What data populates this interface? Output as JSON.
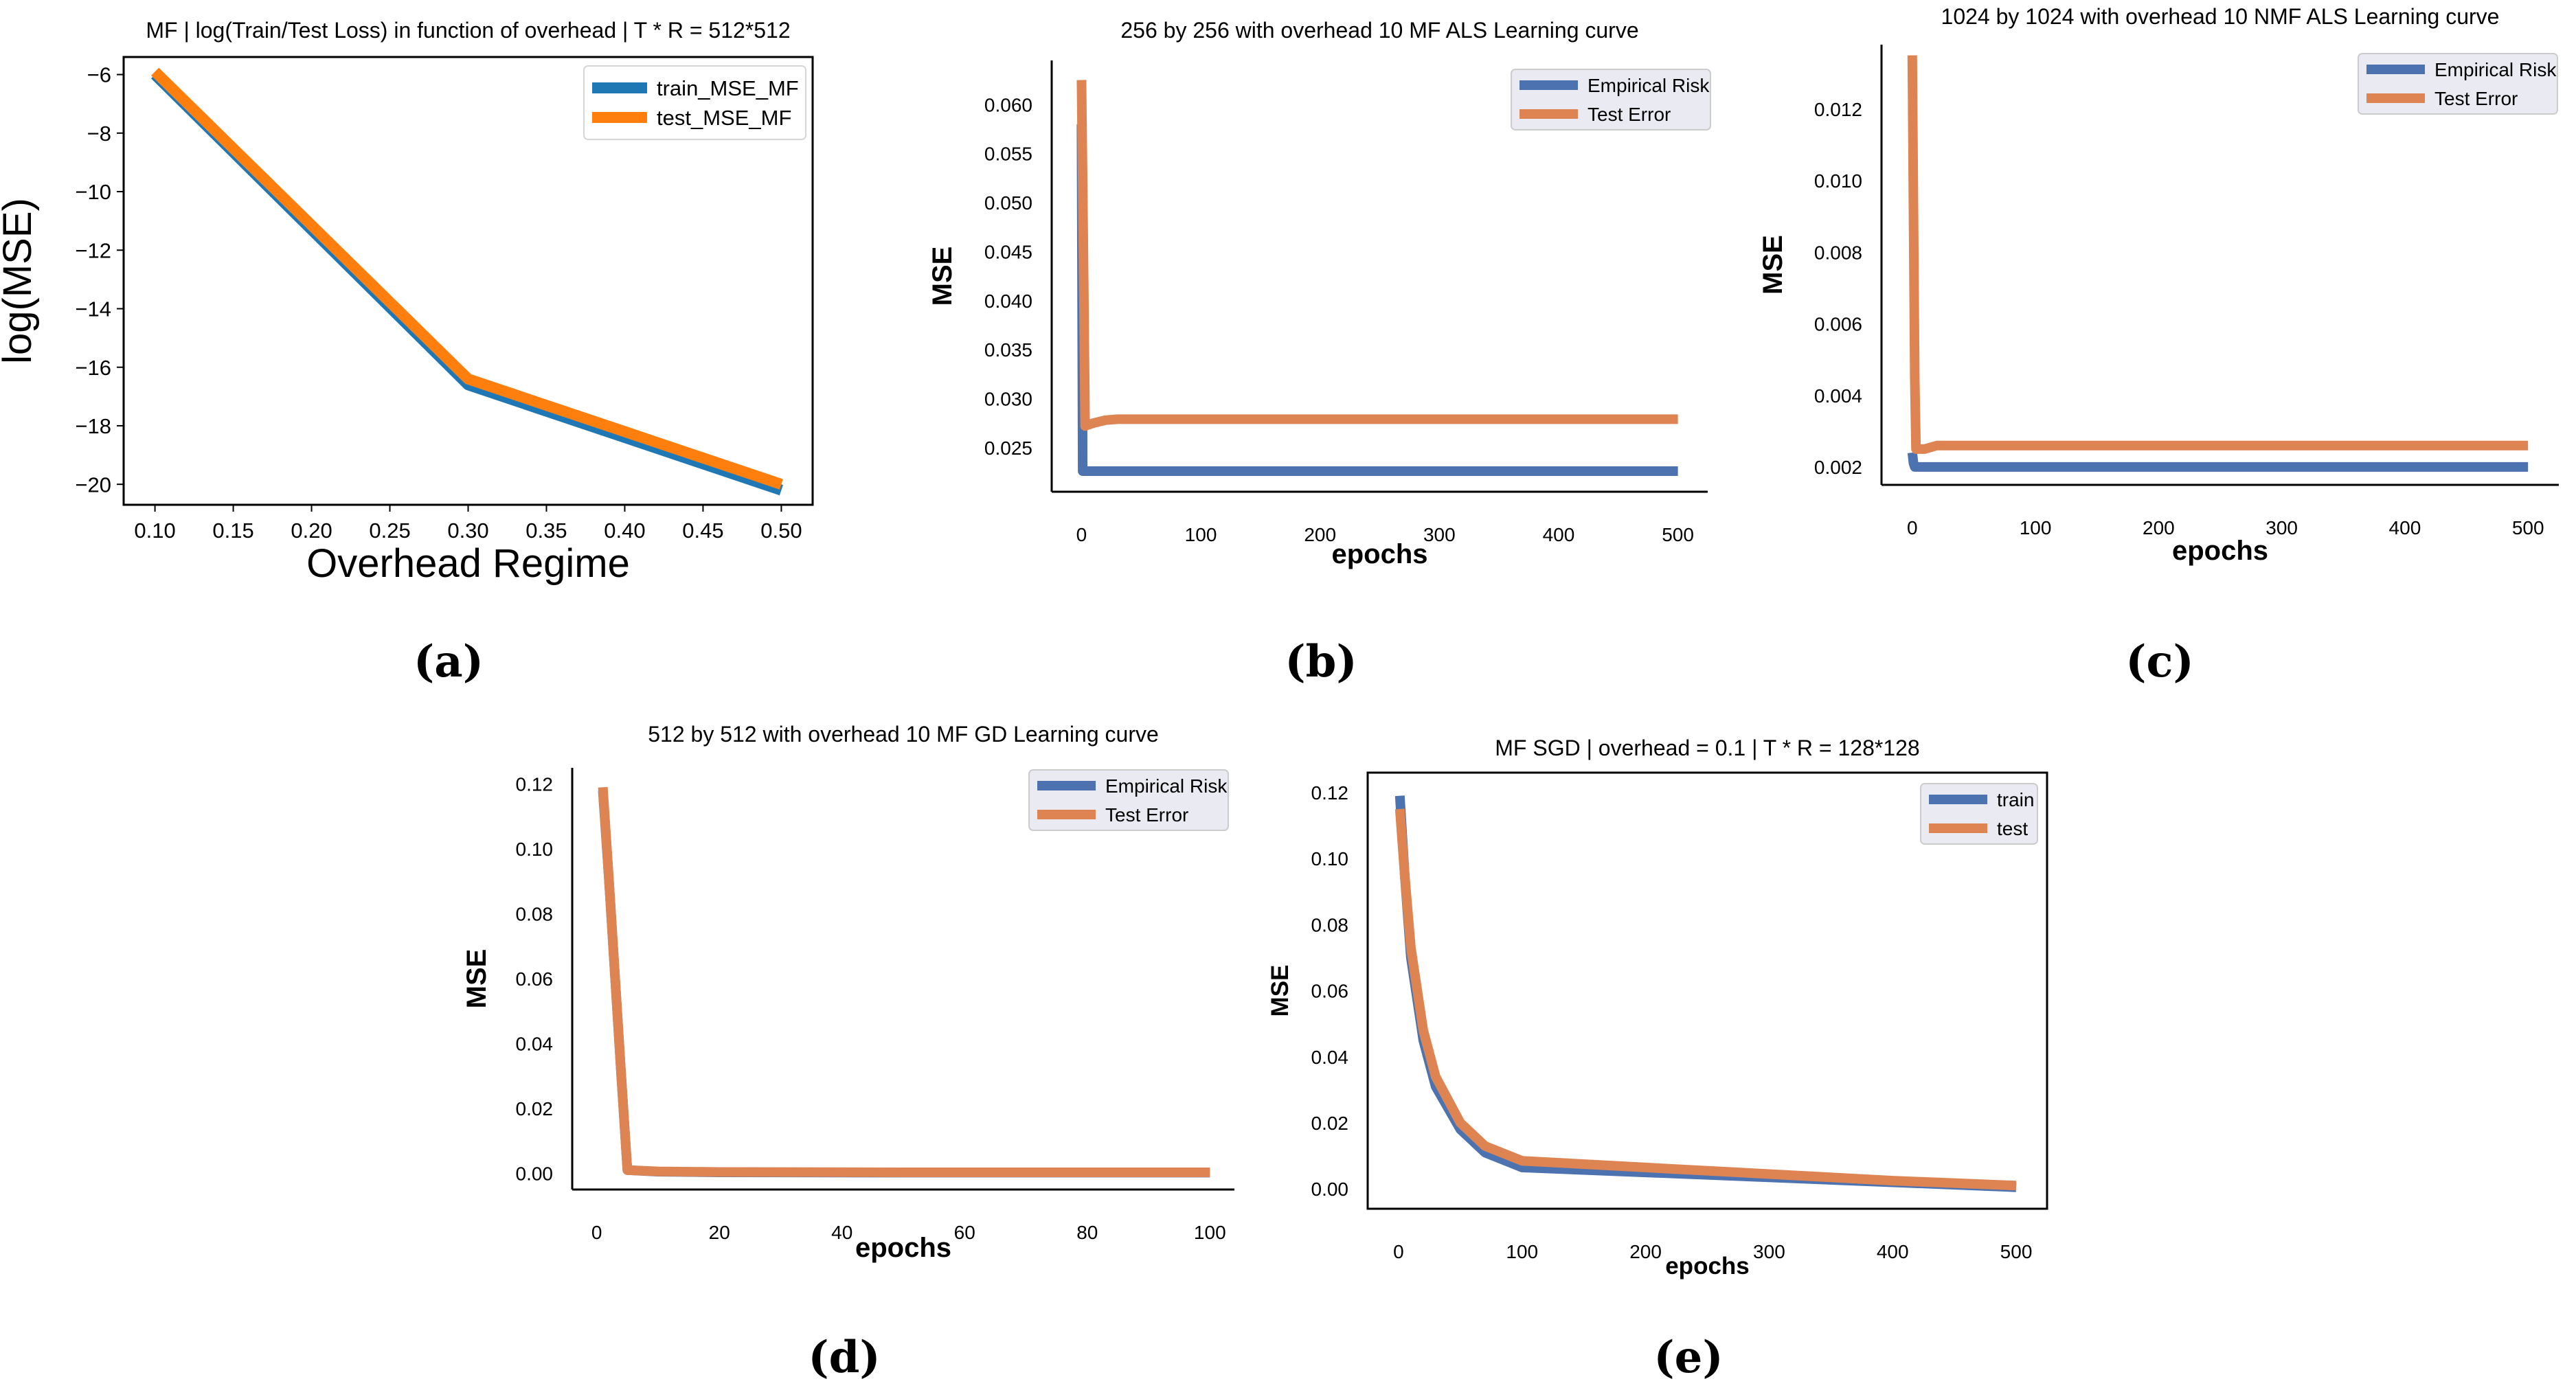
{
  "figure": {
    "captions": [
      "(a)",
      "(b)",
      "(c)",
      "(d)",
      "(e)"
    ]
  },
  "chart_data": [
    {
      "id": "a",
      "type": "line",
      "title": "MF | log(Train/Test Loss) in function of overhead | T * R = 512*512",
      "xlabel": "Overhead Regime",
      "ylabel": "log(MSE)",
      "xlim": [
        0.08,
        0.52
      ],
      "ylim": [
        -20.7,
        -5.4
      ],
      "xticks": [
        "0.10",
        "0.15",
        "0.20",
        "0.25",
        "0.30",
        "0.35",
        "0.40",
        "0.45",
        "0.50"
      ],
      "yticks": [
        "−6",
        "−8",
        "−10",
        "−12",
        "−14",
        "−16",
        "−18",
        "−20"
      ],
      "legend_position": "top-right",
      "series": [
        {
          "name": "train_MSE_MF",
          "color": "#1f77b4",
          "x": [
            0.1,
            0.3,
            0.5
          ],
          "y": [
            -6.0,
            -16.6,
            -20.2
          ]
        },
        {
          "name": "test_MSE_MF",
          "color": "#ff7f0e",
          "x": [
            0.1,
            0.3,
            0.5
          ],
          "y": [
            -5.9,
            -16.4,
            -20.0
          ]
        }
      ]
    },
    {
      "id": "b",
      "type": "line",
      "title": "256 by 256 with overhead 10 MF ALS Learning curve",
      "xlabel": "epochs",
      "ylabel": "MSE",
      "xlim": [
        -25,
        525
      ],
      "ylim": [
        0.0205,
        0.0645
      ],
      "xticks": [
        "0",
        "100",
        "200",
        "300",
        "400",
        "500"
      ],
      "yticks": [
        "0.025",
        "0.030",
        "0.035",
        "0.040",
        "0.045",
        "0.050",
        "0.055",
        "0.060"
      ],
      "legend_position": "top-right",
      "series": [
        {
          "name": "Empirical Risk",
          "color": "#4c72b0",
          "x": [
            0,
            1,
            2,
            3,
            5,
            10,
            20,
            50,
            100,
            200,
            300,
            400,
            500
          ],
          "y": [
            0.058,
            0.0226,
            0.0226,
            0.0226,
            0.0226,
            0.0226,
            0.0226,
            0.0226,
            0.0226,
            0.0226,
            0.0226,
            0.0226,
            0.0226
          ]
        },
        {
          "name": "Test Error",
          "color": "#dd8452",
          "x": [
            0,
            1,
            2,
            3,
            5,
            10,
            20,
            30,
            50,
            100,
            200,
            300,
            400,
            500
          ],
          "y": [
            0.0625,
            0.052,
            0.04,
            0.0272,
            0.0273,
            0.0275,
            0.0278,
            0.0279,
            0.0279,
            0.0279,
            0.0279,
            0.0279,
            0.0279,
            0.0279
          ]
        }
      ]
    },
    {
      "id": "c",
      "type": "line",
      "title": "1024 by 1024 with overhead 10 NMF ALS Learning curve",
      "xlabel": "epochs",
      "ylabel": "MSE",
      "xlim": [
        -25,
        525
      ],
      "ylim": [
        0.0015,
        0.0138
      ],
      "xticks": [
        "0",
        "100",
        "200",
        "300",
        "400",
        "500"
      ],
      "yticks": [
        "0.002",
        "0.004",
        "0.006",
        "0.008",
        "0.010",
        "0.012"
      ],
      "legend_position": "top-right",
      "series": [
        {
          "name": "Empirical Risk",
          "color": "#4c72b0",
          "x": [
            0,
            1,
            2,
            3,
            5,
            10,
            50,
            100,
            200,
            300,
            400,
            500
          ],
          "y": [
            0.0024,
            0.0021,
            0.002,
            0.002,
            0.002,
            0.002,
            0.002,
            0.002,
            0.002,
            0.002,
            0.002,
            0.002
          ]
        },
        {
          "name": "Test Error",
          "color": "#dd8452",
          "x": [
            0,
            1,
            2,
            3,
            5,
            10,
            20,
            50,
            100,
            200,
            300,
            400,
            500
          ],
          "y": [
            0.0135,
            0.009,
            0.0045,
            0.0025,
            0.0025,
            0.0025,
            0.0026,
            0.0026,
            0.0026,
            0.0026,
            0.0026,
            0.0026,
            0.0026
          ]
        }
      ]
    },
    {
      "id": "d",
      "type": "line",
      "title": "512 by 512 with overhead 10 MF GD Learning curve",
      "xlabel": "epochs",
      "ylabel": "MSE",
      "xlim": [
        -4,
        104
      ],
      "ylim": [
        -0.005,
        0.125
      ],
      "xticks": [
        "0",
        "20",
        "40",
        "60",
        "80",
        "100"
      ],
      "yticks": [
        "0.00",
        "0.02",
        "0.04",
        "0.06",
        "0.08",
        "0.10",
        "0.12"
      ],
      "legend_position": "top-right",
      "series": [
        {
          "name": "Empirical Risk",
          "color": "#4c72b0",
          "x": [
            1,
            2,
            3,
            4,
            5,
            10,
            20,
            50,
            100
          ],
          "y": [
            0.118,
            0.09,
            0.06,
            0.03,
            0.001,
            0.0005,
            0.0003,
            0.0002,
            0.0002
          ]
        },
        {
          "name": "Test Error",
          "color": "#dd8452",
          "x": [
            1,
            2,
            3,
            4,
            5,
            10,
            20,
            50,
            100
          ],
          "y": [
            0.119,
            0.09,
            0.06,
            0.03,
            0.001,
            0.0006,
            0.0004,
            0.0003,
            0.0003
          ]
        }
      ]
    },
    {
      "id": "e",
      "type": "line",
      "title": "MF SGD | overhead = 0.1  | T * R = 128*128",
      "xlabel": "epochs",
      "ylabel": "MSE",
      "xlim": [
        -25,
        525
      ],
      "ylim": [
        -0.006,
        0.126
      ],
      "xticks": [
        "0",
        "100",
        "200",
        "300",
        "400",
        "500"
      ],
      "yticks": [
        "0.00",
        "0.02",
        "0.04",
        "0.06",
        "0.08",
        "0.10",
        "0.12"
      ],
      "legend_position": "top-right",
      "series": [
        {
          "name": "train",
          "color": "#4c72b0",
          "x": [
            1,
            5,
            10,
            20,
            30,
            50,
            70,
            100,
            200,
            300,
            400,
            500
          ],
          "y": [
            0.119,
            0.095,
            0.07,
            0.045,
            0.031,
            0.018,
            0.011,
            0.0065,
            0.005,
            0.0035,
            0.002,
            0.0005
          ]
        },
        {
          "name": "test",
          "color": "#dd8452",
          "x": [
            1,
            5,
            10,
            20,
            30,
            50,
            70,
            100,
            200,
            300,
            400,
            500
          ],
          "y": [
            0.115,
            0.095,
            0.073,
            0.048,
            0.034,
            0.02,
            0.013,
            0.0085,
            0.0065,
            0.0045,
            0.0025,
            0.001
          ]
        }
      ]
    }
  ]
}
